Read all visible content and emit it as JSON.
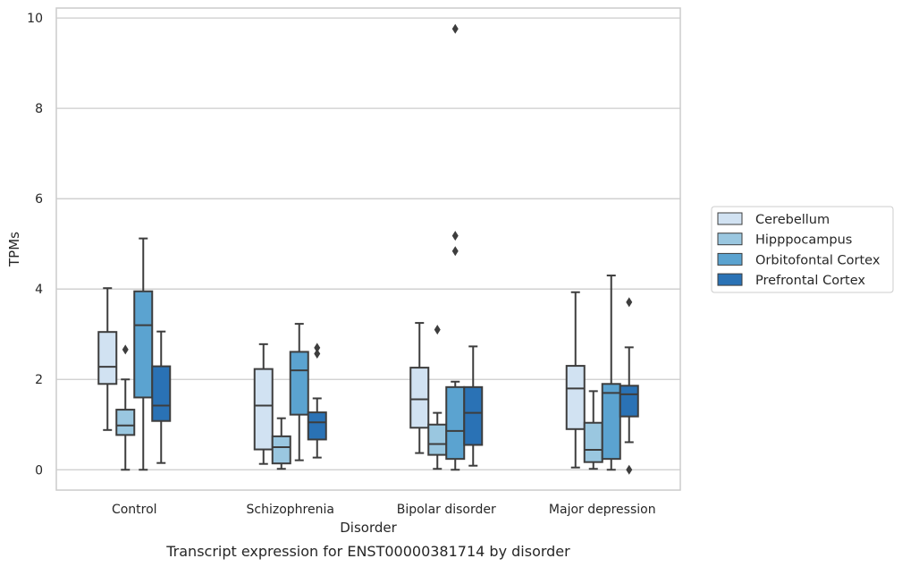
{
  "caption": "Transcript expression for ENST00000381714 by disorder",
  "chart_data": {
    "type": "box",
    "xlabel": "Disorder",
    "ylabel": "TPMs",
    "ylim": [
      -0.45,
      10.22
    ],
    "yticks": [
      0,
      2,
      4,
      6,
      8,
      10
    ],
    "grid": "horizontal",
    "legend_position": "right",
    "categories": [
      "Control",
      "Schizophrenia",
      "Bipolar disorder",
      "Major depression"
    ],
    "series": [
      {
        "name": "Cerebellum",
        "color": "#d1e2f2",
        "boxes": [
          {
            "whisker_low": 0.88,
            "q1": 1.9,
            "median": 2.28,
            "q3": 3.05,
            "whisker_high": 4.02,
            "outliers": []
          },
          {
            "whisker_low": 0.13,
            "q1": 0.45,
            "median": 1.42,
            "q3": 2.23,
            "whisker_high": 2.78,
            "outliers": []
          },
          {
            "whisker_low": 0.37,
            "q1": 0.93,
            "median": 1.56,
            "q3": 2.26,
            "whisker_high": 3.25,
            "outliers": []
          },
          {
            "whisker_low": 0.05,
            "q1": 0.9,
            "median": 1.8,
            "q3": 2.3,
            "whisker_high": 3.93,
            "outliers": []
          }
        ]
      },
      {
        "name": "Hipppocampus",
        "color": "#9ac7e0",
        "boxes": [
          {
            "whisker_low": 0.0,
            "q1": 0.77,
            "median": 0.98,
            "q3": 1.33,
            "whisker_high": 2.0,
            "outliers": [
              2.66
            ]
          },
          {
            "whisker_low": 0.02,
            "q1": 0.14,
            "median": 0.5,
            "q3": 0.74,
            "whisker_high": 1.14,
            "outliers": []
          },
          {
            "whisker_low": 0.02,
            "q1": 0.33,
            "median": 0.57,
            "q3": 1.0,
            "whisker_high": 1.26,
            "outliers": [
              3.1
            ]
          },
          {
            "whisker_low": 0.02,
            "q1": 0.17,
            "median": 0.44,
            "q3": 1.04,
            "whisker_high": 1.74,
            "outliers": []
          }
        ]
      },
      {
        "name": "Orbitofontal Cortex",
        "color": "#5ba3d0",
        "boxes": [
          {
            "whisker_low": 0.0,
            "q1": 1.6,
            "median": 3.2,
            "q3": 3.95,
            "whisker_high": 5.12,
            "outliers": []
          },
          {
            "whisker_low": 0.21,
            "q1": 1.22,
            "median": 2.2,
            "q3": 2.61,
            "whisker_high": 3.23,
            "outliers": []
          },
          {
            "whisker_low": 0.0,
            "q1": 0.24,
            "median": 0.86,
            "q3": 1.83,
            "whisker_high": 1.95,
            "outliers": [
              4.84,
              5.18,
              9.76
            ]
          },
          {
            "whisker_low": 0.0,
            "q1": 0.24,
            "median": 1.7,
            "q3": 1.9,
            "whisker_high": 4.3,
            "outliers": []
          }
        ]
      },
      {
        "name": "Prefrontal Cortex",
        "color": "#2a72b5",
        "boxes": [
          {
            "whisker_low": 0.15,
            "q1": 1.08,
            "median": 1.42,
            "q3": 2.29,
            "whisker_high": 3.06,
            "outliers": []
          },
          {
            "whisker_low": 0.27,
            "q1": 0.67,
            "median": 1.05,
            "q3": 1.27,
            "whisker_high": 1.58,
            "outliers": [
              2.57,
              2.7
            ]
          },
          {
            "whisker_low": 0.09,
            "q1": 0.55,
            "median": 1.26,
            "q3": 1.83,
            "whisker_high": 2.73,
            "outliers": []
          },
          {
            "whisker_low": 0.61,
            "q1": 1.18,
            "median": 1.67,
            "q3": 1.86,
            "whisker_high": 2.71,
            "outliers": [
              0.0,
              3.71
            ]
          }
        ]
      }
    ]
  }
}
